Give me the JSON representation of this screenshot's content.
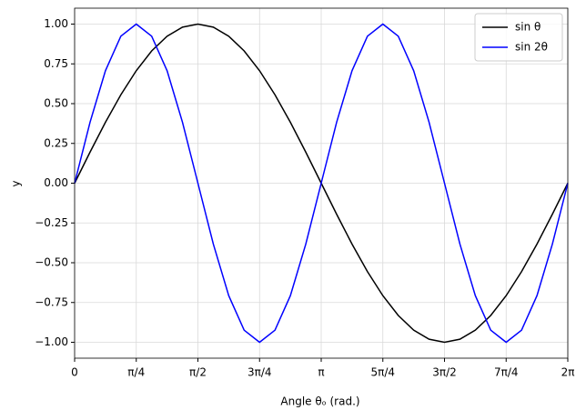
{
  "chart_data": {
    "type": "line",
    "xlabel": "Angle θₒ (rad.)",
    "ylabel": "y",
    "x": [
      0,
      0.1963,
      0.3927,
      0.589,
      0.7854,
      0.9817,
      1.1781,
      1.3744,
      1.5708,
      1.7671,
      1.9635,
      2.1598,
      2.3562,
      2.5525,
      2.7489,
      2.9452,
      3.1416,
      3.3379,
      3.5343,
      3.7306,
      3.927,
      4.1233,
      4.3197,
      4.516,
      4.7124,
      4.9087,
      5.1051,
      5.3014,
      5.4978,
      5.6941,
      5.8905,
      6.0868,
      6.2832
    ],
    "series": [
      {
        "name": "sin θ",
        "color": "#000000",
        "values": [
          0,
          0.1951,
          0.3827,
          0.5556,
          0.7071,
          0.8315,
          0.9239,
          0.9808,
          1,
          0.9808,
          0.9239,
          0.8315,
          0.7071,
          0.5556,
          0.3827,
          0.1951,
          0,
          -0.1951,
          -0.3827,
          -0.5556,
          -0.7071,
          -0.8315,
          -0.9239,
          -0.9808,
          -1,
          -0.9808,
          -0.9239,
          -0.8315,
          -0.7071,
          -0.5556,
          -0.3827,
          -0.1951,
          0
        ]
      },
      {
        "name": "sin 2θ",
        "color": "#0000ff",
        "values": [
          0,
          0.3827,
          0.7071,
          0.9239,
          1,
          0.9239,
          0.7071,
          0.3827,
          0,
          -0.3827,
          -0.7071,
          -0.9239,
          -1,
          -0.9239,
          -0.7071,
          -0.3827,
          0,
          0.3827,
          0.7071,
          0.9239,
          1,
          0.9239,
          0.7071,
          0.3827,
          0,
          -0.3827,
          -0.7071,
          -0.9239,
          -1,
          -0.9239,
          -0.7071,
          -0.3827,
          0
        ]
      }
    ],
    "xlim": [
      0,
      6.2832
    ],
    "ylim": [
      -1.1,
      1.1
    ],
    "xticks": [
      {
        "value": 0,
        "label": "0"
      },
      {
        "value": 0.7854,
        "label": "π/4"
      },
      {
        "value": 1.5708,
        "label": "π/2"
      },
      {
        "value": 2.3562,
        "label": "3π/4"
      },
      {
        "value": 3.1416,
        "label": "π"
      },
      {
        "value": 3.927,
        "label": "5π/4"
      },
      {
        "value": 4.7124,
        "label": "3π/2"
      },
      {
        "value": 5.4978,
        "label": "7π/4"
      },
      {
        "value": 6.2832,
        "label": "2π"
      }
    ],
    "yticks": [
      {
        "value": -1,
        "label": "−1.00"
      },
      {
        "value": -0.75,
        "label": "−0.75"
      },
      {
        "value": -0.5,
        "label": "−0.50"
      },
      {
        "value": -0.25,
        "label": "−0.25"
      },
      {
        "value": 0,
        "label": "0.00"
      },
      {
        "value": 0.25,
        "label": "0.25"
      },
      {
        "value": 0.5,
        "label": "0.50"
      },
      {
        "value": 0.75,
        "label": "0.75"
      },
      {
        "value": 1,
        "label": "1.00"
      }
    ],
    "grid": true,
    "legend": "upper-right"
  }
}
